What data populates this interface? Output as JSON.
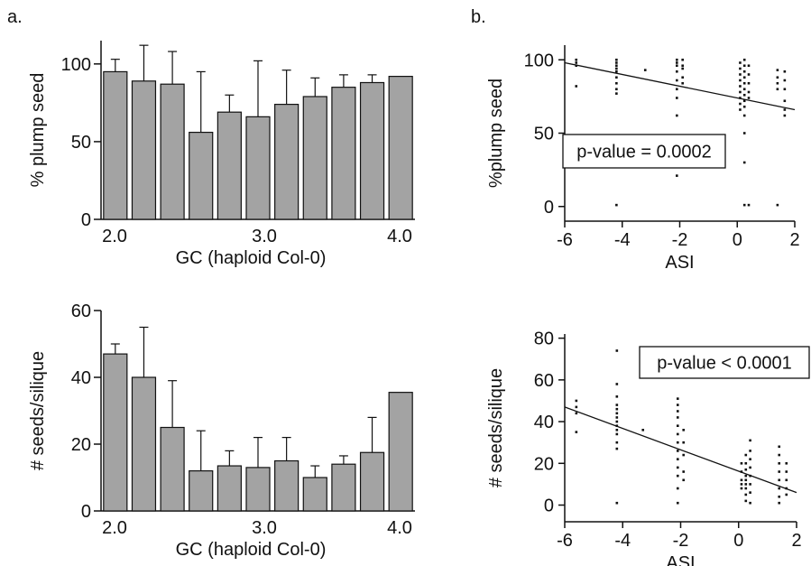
{
  "panel_labels": {
    "a": "a.",
    "b": "b."
  },
  "chart_data": [
    {
      "id": "a_top",
      "type": "bar",
      "xlabel": "GC (haploid Col-0)",
      "ylabel": "% plump seed",
      "x_ticks": [
        "2.0",
        "3.0",
        "4.0"
      ],
      "y_ticks": [
        "0",
        "50",
        "100"
      ],
      "ylim": [
        0,
        115
      ],
      "values": [
        95,
        89,
        87,
        56,
        69,
        66,
        74,
        79,
        85,
        88,
        92
      ],
      "error_upper": [
        103,
        112,
        108,
        95,
        80,
        102,
        96,
        91,
        93,
        93,
        92
      ]
    },
    {
      "id": "a_bottom",
      "type": "bar",
      "xlabel": "GC (haploid Col-0)",
      "ylabel": "# seeds/silique",
      "x_ticks": [
        "2.0",
        "3.0",
        "4.0"
      ],
      "y_ticks": [
        "0",
        "20",
        "40",
        "60"
      ],
      "ylim": [
        0,
        60
      ],
      "values": [
        47,
        40,
        25,
        12,
        13.5,
        13,
        15,
        10,
        14,
        17.5,
        35.5
      ],
      "error_upper": [
        50,
        55,
        39,
        24,
        18,
        22,
        22,
        13.5,
        16.5,
        28,
        35.5
      ]
    },
    {
      "id": "b_top",
      "type": "scatter",
      "xlabel": "ASI",
      "ylabel": "%plump seed",
      "x_ticks": [
        "-6",
        "-4",
        "-2",
        "0",
        "2"
      ],
      "y_ticks": [
        "0",
        "50",
        "100"
      ],
      "xlim": [
        -6,
        2
      ],
      "ylim": [
        -10,
        110
      ],
      "annotation": "p-value = 0.0002",
      "trend_line": {
        "x": [
          -6,
          2
        ],
        "y": [
          98,
          66
        ]
      },
      "points": [
        [
          -5.6,
          100
        ],
        [
          -5.6,
          98
        ],
        [
          -5.6,
          96
        ],
        [
          -5.6,
          82
        ],
        [
          -4.2,
          100
        ],
        [
          -4.2,
          98
        ],
        [
          -4.2,
          96
        ],
        [
          -4.2,
          94
        ],
        [
          -4.2,
          92
        ],
        [
          -4.2,
          88
        ],
        [
          -4.2,
          84
        ],
        [
          -4.2,
          80
        ],
        [
          -4.2,
          77
        ],
        [
          -4.2,
          1
        ],
        [
          -3.2,
          93
        ],
        [
          -2.1,
          100
        ],
        [
          -2.1,
          98
        ],
        [
          -2.1,
          96
        ],
        [
          -2.1,
          92
        ],
        [
          -2.1,
          86
        ],
        [
          -2.1,
          80
        ],
        [
          -2.1,
          74
        ],
        [
          -2.1,
          62
        ],
        [
          -2.1,
          21
        ],
        [
          -1.9,
          100
        ],
        [
          -1.9,
          96
        ],
        [
          -1.9,
          94
        ],
        [
          -1.9,
          88
        ],
        [
          -1.9,
          84
        ],
        [
          0.1,
          98
        ],
        [
          0.1,
          94
        ],
        [
          0.1,
          90
        ],
        [
          0.1,
          86
        ],
        [
          0.1,
          82
        ],
        [
          0.1,
          78
        ],
        [
          0.1,
          74
        ],
        [
          0.1,
          70
        ],
        [
          0.1,
          66
        ],
        [
          0.25,
          100
        ],
        [
          0.25,
          96
        ],
        [
          0.25,
          92
        ],
        [
          0.25,
          88
        ],
        [
          0.25,
          84
        ],
        [
          0.25,
          80
        ],
        [
          0.25,
          76
        ],
        [
          0.25,
          72
        ],
        [
          0.25,
          68
        ],
        [
          0.25,
          62
        ],
        [
          0.25,
          50
        ],
        [
          0.25,
          30
        ],
        [
          0.25,
          1
        ],
        [
          0.4,
          96
        ],
        [
          0.4,
          90
        ],
        [
          0.4,
          84
        ],
        [
          0.4,
          78
        ],
        [
          0.4,
          74
        ],
        [
          0.4,
          1
        ],
        [
          1.4,
          93
        ],
        [
          1.4,
          88
        ],
        [
          1.4,
          84
        ],
        [
          1.4,
          80
        ],
        [
          1.4,
          1
        ],
        [
          1.65,
          92
        ],
        [
          1.65,
          86
        ],
        [
          1.65,
          80
        ],
        [
          1.65,
          72
        ],
        [
          1.65,
          66
        ],
        [
          1.65,
          62
        ]
      ]
    },
    {
      "id": "b_bottom",
      "type": "scatter",
      "xlabel": "ASI",
      "ylabel": "# seeds/silique",
      "x_ticks": [
        "-6",
        "-4",
        "-2",
        "0",
        "2"
      ],
      "y_ticks": [
        "0",
        "20",
        "40",
        "60",
        "80"
      ],
      "xlim": [
        -6,
        2
      ],
      "ylim": [
        -8,
        82
      ],
      "annotation": "p-value < 0.0001",
      "trend_line": {
        "x": [
          -6,
          2
        ],
        "y": [
          47,
          6
        ]
      },
      "points": [
        [
          -5.6,
          50
        ],
        [
          -5.6,
          47
        ],
        [
          -5.6,
          44
        ],
        [
          -5.6,
          35
        ],
        [
          -4.2,
          74
        ],
        [
          -4.2,
          58
        ],
        [
          -4.2,
          52
        ],
        [
          -4.2,
          48
        ],
        [
          -4.2,
          46
        ],
        [
          -4.2,
          44
        ],
        [
          -4.2,
          42
        ],
        [
          -4.2,
          40
        ],
        [
          -4.2,
          38
        ],
        [
          -4.2,
          36
        ],
        [
          -4.2,
          34
        ],
        [
          -4.2,
          30
        ],
        [
          -4.2,
          27
        ],
        [
          -4.2,
          1
        ],
        [
          -3.3,
          36
        ],
        [
          -2.1,
          51
        ],
        [
          -2.1,
          48
        ],
        [
          -2.1,
          45
        ],
        [
          -2.1,
          42
        ],
        [
          -2.1,
          38
        ],
        [
          -2.1,
          34
        ],
        [
          -2.1,
          30
        ],
        [
          -2.1,
          26
        ],
        [
          -2.1,
          22
        ],
        [
          -2.1,
          18
        ],
        [
          -2.1,
          14
        ],
        [
          -2.1,
          8
        ],
        [
          -2.1,
          1
        ],
        [
          -1.9,
          36
        ],
        [
          -1.9,
          30
        ],
        [
          -1.9,
          24
        ],
        [
          -1.9,
          16
        ],
        [
          -1.9,
          12
        ],
        [
          0.1,
          20
        ],
        [
          0.1,
          16
        ],
        [
          0.1,
          12
        ],
        [
          0.1,
          10
        ],
        [
          0.1,
          8
        ],
        [
          0.25,
          24
        ],
        [
          0.25,
          20
        ],
        [
          0.25,
          17
        ],
        [
          0.25,
          14
        ],
        [
          0.25,
          12
        ],
        [
          0.25,
          10
        ],
        [
          0.25,
          8
        ],
        [
          0.25,
          5
        ],
        [
          0.25,
          2
        ],
        [
          0.4,
          31
        ],
        [
          0.4,
          26
        ],
        [
          0.4,
          22
        ],
        [
          0.4,
          18
        ],
        [
          0.4,
          14
        ],
        [
          0.4,
          10
        ],
        [
          0.4,
          6
        ],
        [
          0.4,
          1
        ],
        [
          1.4,
          28
        ],
        [
          1.4,
          24
        ],
        [
          1.4,
          20
        ],
        [
          1.4,
          16
        ],
        [
          1.4,
          12
        ],
        [
          1.4,
          8
        ],
        [
          1.4,
          4
        ],
        [
          1.4,
          1
        ],
        [
          1.65,
          20
        ],
        [
          1.65,
          16
        ],
        [
          1.65,
          12
        ],
        [
          1.65,
          8
        ],
        [
          1.65,
          5
        ]
      ]
    }
  ]
}
